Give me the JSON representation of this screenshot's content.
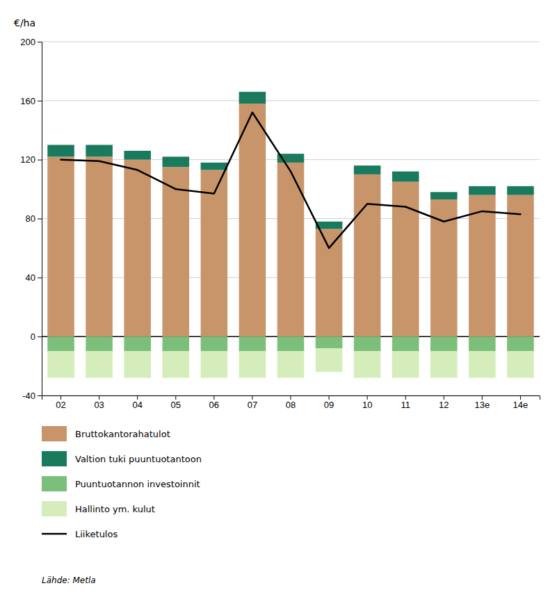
{
  "chart_data": {
    "type": "bar",
    "stacked": true,
    "ylabel": "€/ha",
    "categories": [
      "02",
      "03",
      "04",
      "05",
      "06",
      "07",
      "08",
      "09",
      "10",
      "11",
      "12",
      "13e",
      "14e"
    ],
    "series": [
      {
        "name": "Bruttokantorahatulot",
        "color": "#c8956b",
        "values": [
          122,
          122,
          120,
          115,
          113,
          158,
          118,
          73,
          110,
          105,
          93,
          96,
          96
        ]
      },
      {
        "name": "Valtion tuki puuntuotantoon",
        "color": "#1a7a5e",
        "values": [
          8,
          8,
          6,
          7,
          5,
          8,
          6,
          5,
          6,
          7,
          5,
          6,
          6
        ]
      },
      {
        "name": "Puuntuotannon investoinnit",
        "color": "#7bbf7b",
        "values": [
          -10,
          -10,
          -10,
          -10,
          -10,
          -10,
          -10,
          -8,
          -10,
          -10,
          -10,
          -10,
          -10
        ]
      },
      {
        "name": "Hallinto ym. kulut",
        "color": "#d4edba",
        "values": [
          -18,
          -18,
          -18,
          -18,
          -18,
          -18,
          -18,
          -16,
          -18,
          -18,
          -18,
          -18,
          -18
        ]
      },
      {
        "name": "Liiketulos",
        "type": "line",
        "color": "#000000",
        "values": [
          120,
          119,
          113,
          100,
          97,
          152,
          112,
          60,
          90,
          88,
          78,
          85,
          83
        ]
      }
    ],
    "ylim": [
      -40,
      200
    ],
    "yticks": [
      -40,
      0,
      40,
      80,
      120,
      160,
      200
    ],
    "grid": true,
    "legend": "bottom",
    "annotations": [
      "Lähde: Metla"
    ]
  }
}
